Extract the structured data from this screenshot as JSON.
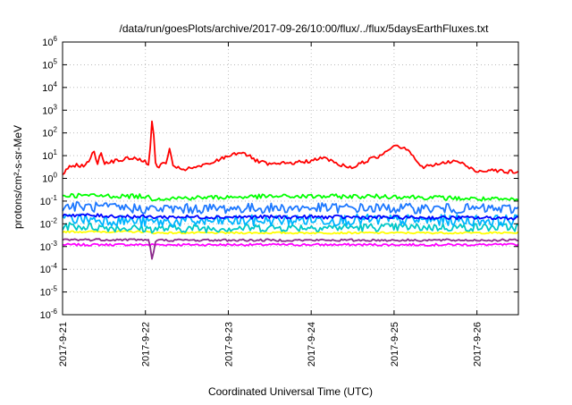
{
  "chart_data": {
    "type": "line",
    "title": "/data/run/goesPlots/archive/2017-09-26/10:00/flux/../flux/5daysEarthFluxes.txt",
    "xlabel": "Coordinated Universal Time (UTC)",
    "ylabel": "protons/cm²-s-sr-MeV",
    "x_scale": "time",
    "y_scale": "log",
    "xlim": [
      "2017-09-21T00:00",
      "2017-09-26T12:00"
    ],
    "ylim": [
      1e-06,
      1000000.0
    ],
    "grid": true,
    "legend": "none",
    "x_ticks": [
      "2017-9-21",
      "2017-9-22",
      "2017-9-23",
      "2017-9-24",
      "2017-9-25",
      "2017-9-26"
    ],
    "y_ticks": [
      {
        "exp": "-6",
        "value": 1e-06
      },
      {
        "exp": "-5",
        "value": 1e-05
      },
      {
        "exp": "-4",
        "value": 0.0001
      },
      {
        "exp": "-3",
        "value": 0.001
      },
      {
        "exp": "-2",
        "value": 0.01
      },
      {
        "exp": "-1",
        "value": 0.1
      },
      {
        "exp": "0",
        "value": 1
      },
      {
        "exp": "1",
        "value": 10
      },
      {
        "exp": "2",
        "value": 100
      },
      {
        "exp": "3",
        "value": 1000
      },
      {
        "exp": "4",
        "value": 10000
      },
      {
        "exp": "5",
        "value": 100000
      },
      {
        "exp": "6",
        "value": 1000000
      }
    ],
    "series": [
      {
        "color": "#ff00ff",
        "noise": 0.05,
        "points": [
          [
            "2017-09-21T00:00",
            0.0012
          ],
          [
            "2017-09-22T02:00",
            0.0012
          ],
          [
            "2017-09-26T12:00",
            0.0012
          ]
        ]
      },
      {
        "color": "#ffff00",
        "noise": 0.04,
        "points": [
          [
            "2017-09-21T00:00",
            0.0045
          ],
          [
            "2017-09-22T00:00",
            0.0045
          ],
          [
            "2017-09-22T02:00",
            0.004
          ],
          [
            "2017-09-26T12:00",
            0.004
          ]
        ]
      },
      {
        "color": "#00c8c8",
        "noise": 0.18,
        "points": [
          [
            "2017-09-21T00:00",
            0.008
          ],
          [
            "2017-09-22T02:00",
            0.006
          ],
          [
            "2017-09-24T00:00",
            0.007
          ],
          [
            "2017-09-26T12:00",
            0.007
          ]
        ]
      },
      {
        "color": "#00b4ff",
        "noise": 0.25,
        "points": [
          [
            "2017-09-21T00:00",
            0.018
          ],
          [
            "2017-09-22T02:00",
            0.012
          ],
          [
            "2017-09-24T00:00",
            0.015
          ],
          [
            "2017-09-26T12:00",
            0.014
          ]
        ]
      },
      {
        "color": "#0000ff",
        "noise": 0.08,
        "points": [
          [
            "2017-09-21T00:00",
            0.025
          ],
          [
            "2017-09-22T02:00",
            0.02
          ],
          [
            "2017-09-24T00:00",
            0.02
          ],
          [
            "2017-09-26T12:00",
            0.018
          ]
        ]
      },
      {
        "color": "#1e78ff",
        "noise": 0.22,
        "points": [
          [
            "2017-09-21T00:00",
            0.06
          ],
          [
            "2017-09-22T02:00",
            0.045
          ],
          [
            "2017-09-24T00:00",
            0.05
          ],
          [
            "2017-09-26T12:00",
            0.045
          ]
        ]
      },
      {
        "color": "#00ff00",
        "noise": 0.1,
        "points": [
          [
            "2017-09-21T00:00",
            0.18
          ],
          [
            "2017-09-22T00:00",
            0.16
          ],
          [
            "2017-09-22T02:00",
            0.13
          ],
          [
            "2017-09-23T12:00",
            0.16
          ],
          [
            "2017-09-25T00:00",
            0.16
          ],
          [
            "2017-09-26T12:00",
            0.11
          ]
        ]
      },
      {
        "color": "#8b2a8b",
        "noise": 0.05,
        "points": [
          [
            "2017-09-21T00:00",
            0.002
          ],
          [
            "2017-09-22T00:00",
            0.002
          ],
          [
            "2017-09-22T01:00",
            0.0019
          ],
          [
            "2017-09-22T02:00",
            0.00025
          ],
          [
            "2017-09-22T03:00",
            0.0019
          ],
          [
            "2017-09-26T12:00",
            0.0019
          ]
        ]
      },
      {
        "color": "#ff0000",
        "noise": 0.08,
        "points": [
          [
            "2017-09-21T00:00",
            1.5
          ],
          [
            "2017-09-21T02:00",
            3
          ],
          [
            "2017-09-21T04:00",
            4
          ],
          [
            "2017-09-21T06:00",
            3.5
          ],
          [
            "2017-09-21T08:00",
            6
          ],
          [
            "2017-09-21T09:00",
            20
          ],
          [
            "2017-09-21T10:00",
            4
          ],
          [
            "2017-09-21T11:00",
            15
          ],
          [
            "2017-09-21T12:00",
            5
          ],
          [
            "2017-09-21T16:00",
            6
          ],
          [
            "2017-09-21T20:00",
            8
          ],
          [
            "2017-09-22T00:00",
            6
          ],
          [
            "2017-09-22T01:00",
            3
          ],
          [
            "2017-09-22T02:00",
            600
          ],
          [
            "2017-09-22T03:00",
            3
          ],
          [
            "2017-09-22T06:00",
            5
          ],
          [
            "2017-09-22T07:00",
            20
          ],
          [
            "2017-09-22T08:00",
            3
          ],
          [
            "2017-09-22T12:00",
            2.5
          ],
          [
            "2017-09-22T18:00",
            4
          ],
          [
            "2017-09-23T00:00",
            10
          ],
          [
            "2017-09-23T04:00",
            15
          ],
          [
            "2017-09-23T08:00",
            6
          ],
          [
            "2017-09-23T12:00",
            4
          ],
          [
            "2017-09-23T20:00",
            5
          ],
          [
            "2017-09-24T00:00",
            6
          ],
          [
            "2017-09-24T04:00",
            8
          ],
          [
            "2017-09-24T08:00",
            4
          ],
          [
            "2017-09-24T12:00",
            3
          ],
          [
            "2017-09-24T16:00",
            6
          ],
          [
            "2017-09-24T20:00",
            10
          ],
          [
            "2017-09-25T00:00",
            30
          ],
          [
            "2017-09-25T04:00",
            20
          ],
          [
            "2017-09-25T08:00",
            3
          ],
          [
            "2017-09-25T12:00",
            4
          ],
          [
            "2017-09-25T18:00",
            6
          ],
          [
            "2017-09-26T00:00",
            2
          ],
          [
            "2017-09-26T04:00",
            2.5
          ],
          [
            "2017-09-26T08:00",
            2
          ],
          [
            "2017-09-26T12:00",
            1.8
          ]
        ]
      }
    ]
  }
}
